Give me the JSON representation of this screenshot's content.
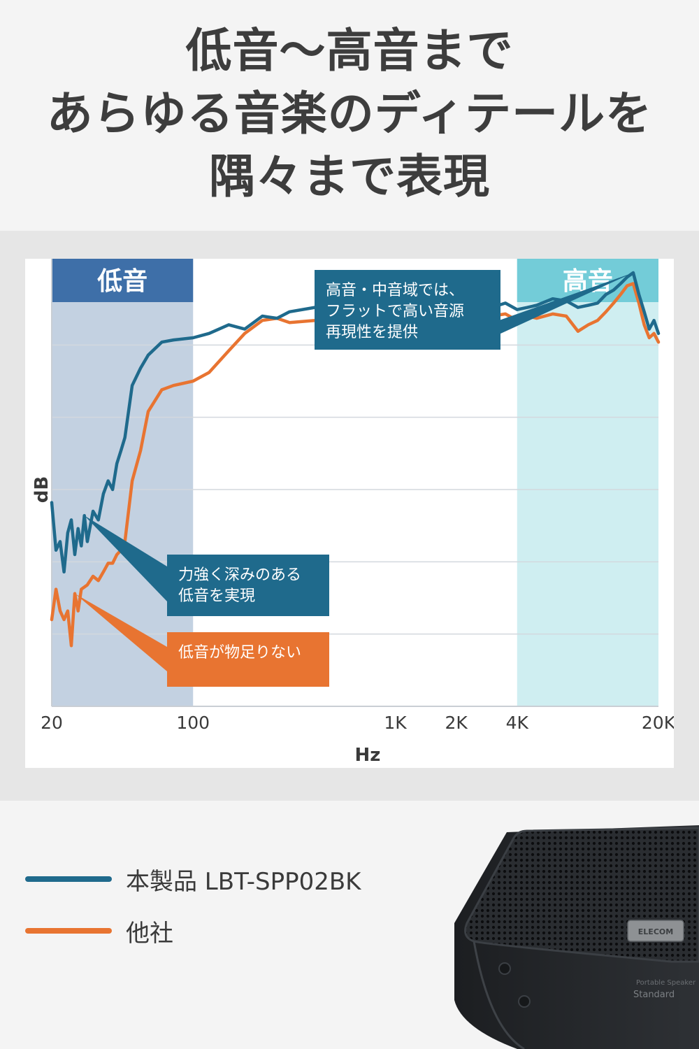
{
  "headline": {
    "line1": "低音～高音まで",
    "line2": "あらゆる音楽のディテールを",
    "line3": "隅々まで表現"
  },
  "chart_data": {
    "type": "line",
    "xlabel": "Hz",
    "ylabel": "dB",
    "x_scale": "log",
    "xlim": [
      20,
      20000
    ],
    "x_ticks": [
      {
        "value": 20,
        "label": "20"
      },
      {
        "value": 100,
        "label": "100"
      },
      {
        "value": 1000,
        "label": "1K"
      },
      {
        "value": 2000,
        "label": "2K"
      },
      {
        "value": 4000,
        "label": "4K"
      },
      {
        "value": 20000,
        "label": "20K"
      }
    ],
    "ylim": [
      0,
      100
    ],
    "grid": "horizontal",
    "regions": [
      {
        "label": "低音",
        "from": 20,
        "to": 100,
        "color": "#b9c9dc",
        "header_color": "#3e6fa8"
      },
      {
        "label": "高音",
        "from": 4000,
        "to": 20000,
        "color": "#c7ebef",
        "header_color": "#73ccd8"
      }
    ],
    "series": [
      {
        "name": "本製品 LBT-SPP02BK",
        "color": "#1f6a8c",
        "points": [
          [
            20,
            47
          ],
          [
            21,
            36
          ],
          [
            22,
            38
          ],
          [
            23,
            31
          ],
          [
            24,
            40
          ],
          [
            25,
            43
          ],
          [
            26,
            35
          ],
          [
            27,
            41
          ],
          [
            28,
            37
          ],
          [
            29,
            44
          ],
          [
            30,
            38
          ],
          [
            32,
            45
          ],
          [
            34,
            43
          ],
          [
            36,
            49
          ],
          [
            38,
            52
          ],
          [
            40,
            50
          ],
          [
            42,
            56
          ],
          [
            44,
            59
          ],
          [
            46,
            62
          ],
          [
            50,
            74
          ],
          [
            55,
            78
          ],
          [
            60,
            81
          ],
          [
            70,
            84
          ],
          [
            80,
            84.5
          ],
          [
            100,
            85
          ],
          [
            120,
            86
          ],
          [
            150,
            88
          ],
          [
            180,
            87
          ],
          [
            220,
            90
          ],
          [
            260,
            89.5
          ],
          [
            300,
            91
          ],
          [
            400,
            92
          ],
          [
            500,
            91.5
          ],
          [
            600,
            92.5
          ],
          [
            700,
            92
          ],
          [
            800,
            92.5
          ],
          [
            900,
            92
          ],
          [
            1000,
            93
          ],
          [
            1200,
            92
          ],
          [
            1400,
            93
          ],
          [
            1600,
            92.5
          ],
          [
            1800,
            93.5
          ],
          [
            2000,
            93
          ],
          [
            2300,
            92.5
          ],
          [
            2700,
            93.5
          ],
          [
            3000,
            92
          ],
          [
            3500,
            93
          ],
          [
            4000,
            91.5
          ],
          [
            4500,
            92
          ],
          [
            5000,
            92.5
          ],
          [
            6000,
            94
          ],
          [
            7000,
            93.5
          ],
          [
            8000,
            92
          ],
          [
            9000,
            92.5
          ],
          [
            10000,
            93
          ],
          [
            11000,
            95
          ],
          [
            12000,
            96
          ],
          [
            13000,
            97.5
          ],
          [
            14000,
            99
          ],
          [
            15000,
            100
          ],
          [
            16000,
            95
          ],
          [
            17000,
            91
          ],
          [
            18000,
            87
          ],
          [
            19000,
            89
          ],
          [
            20000,
            86
          ]
        ]
      },
      {
        "name": "他社",
        "color": "#e87431",
        "points": [
          [
            20,
            20
          ],
          [
            21,
            27
          ],
          [
            22,
            22
          ],
          [
            23,
            20
          ],
          [
            24,
            22
          ],
          [
            25,
            14
          ],
          [
            26,
            26
          ],
          [
            27,
            22
          ],
          [
            28,
            27
          ],
          [
            30,
            28
          ],
          [
            32,
            30
          ],
          [
            34,
            29
          ],
          [
            36,
            31
          ],
          [
            38,
            33
          ],
          [
            40,
            33
          ],
          [
            42,
            35
          ],
          [
            44,
            36
          ],
          [
            46,
            38
          ],
          [
            50,
            52
          ],
          [
            55,
            59
          ],
          [
            60,
            68
          ],
          [
            70,
            73
          ],
          [
            80,
            74
          ],
          [
            100,
            75
          ],
          [
            120,
            77
          ],
          [
            150,
            82
          ],
          [
            180,
            86
          ],
          [
            220,
            89
          ],
          [
            260,
            89.5
          ],
          [
            300,
            88.5
          ],
          [
            400,
            89
          ],
          [
            500,
            89.5
          ],
          [
            600,
            90
          ],
          [
            700,
            89.5
          ],
          [
            800,
            90
          ],
          [
            900,
            90.5
          ],
          [
            1000,
            91
          ],
          [
            1200,
            90.5
          ],
          [
            1400,
            91
          ],
          [
            1600,
            91.5
          ],
          [
            1800,
            90.5
          ],
          [
            2000,
            91
          ],
          [
            2300,
            90.5
          ],
          [
            2700,
            91
          ],
          [
            3000,
            90
          ],
          [
            3500,
            90.5
          ],
          [
            4000,
            89
          ],
          [
            4500,
            90
          ],
          [
            5000,
            89.5
          ],
          [
            6000,
            90.5
          ],
          [
            7000,
            90
          ],
          [
            8000,
            86.5
          ],
          [
            9000,
            88
          ],
          [
            10000,
            89
          ],
          [
            11000,
            91
          ],
          [
            12000,
            93
          ],
          [
            13000,
            95
          ],
          [
            14000,
            97
          ],
          [
            15000,
            97.5
          ],
          [
            16000,
            93
          ],
          [
            17000,
            88
          ],
          [
            18000,
            85
          ],
          [
            19000,
            86
          ],
          [
            20000,
            84
          ]
        ]
      }
    ],
    "annotations": [
      {
        "lines": [
          "高音・中音域では、",
          "フラットで高い音源",
          "再現性を提供"
        ],
        "color": "#1f6a8c",
        "points_to": [
          15000,
          100
        ]
      },
      {
        "lines": [
          "力強く深みのある",
          "低音を実現"
        ],
        "color": "#1f6a8c",
        "points_to": [
          29,
          44
        ]
      },
      {
        "lines": [
          "低音が物足りない"
        ],
        "color": "#e87431",
        "points_to": [
          26,
          26
        ]
      }
    ]
  },
  "legend": [
    {
      "label": "本製品 LBT-SPP02BK",
      "color": "#1f6a8c"
    },
    {
      "label": "他社",
      "color": "#e87431"
    }
  ],
  "product": {
    "brand_badge": "ELECOM",
    "side_text_line1": "Portable Speaker",
    "side_text_line2": "Standard"
  }
}
